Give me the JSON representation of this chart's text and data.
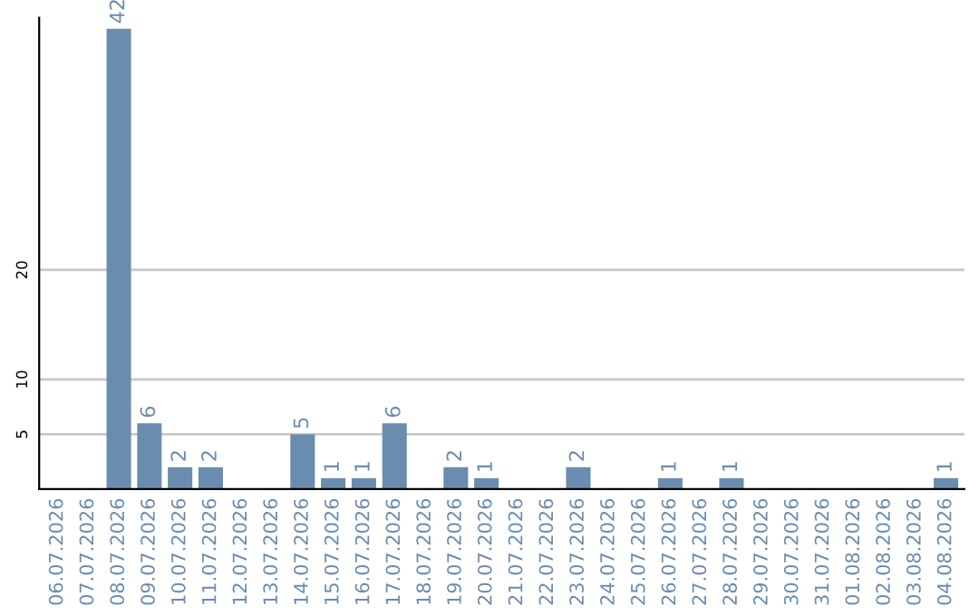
{
  "chart_data": {
    "type": "bar",
    "categories": [
      "06.07.2026",
      "07.07.2026",
      "08.07.2026",
      "09.07.2026",
      "10.07.2026",
      "11.07.2026",
      "12.07.2026",
      "13.07.2026",
      "14.07.2026",
      "15.07.2026",
      "16.07.2026",
      "17.07.2026",
      "18.07.2026",
      "19.07.2026",
      "20.07.2026",
      "21.07.2026",
      "22.07.2026",
      "23.07.2026",
      "24.07.2026",
      "25.07.2026",
      "26.07.2026",
      "27.07.2026",
      "28.07.2026",
      "29.07.2026",
      "30.07.2026",
      "31.07.2026",
      "01.08.2026",
      "02.08.2026",
      "03.08.2026",
      "04.08.2026"
    ],
    "values": [
      0,
      0,
      42,
      6,
      2,
      2,
      0,
      0,
      5,
      1,
      1,
      6,
      0,
      2,
      1,
      0,
      0,
      2,
      0,
      0,
      1,
      0,
      1,
      0,
      0,
      0,
      0,
      0,
      0,
      1
    ],
    "value_labels": [
      null,
      null,
      "42",
      "6",
      "2",
      "2",
      null,
      null,
      "5",
      "1",
      "1",
      "6",
      null,
      "2",
      "1",
      null,
      null,
      "2",
      null,
      null,
      "1",
      null,
      "1",
      null,
      null,
      null,
      null,
      null,
      null,
      "1"
    ],
    "color": "#6a8caf",
    "ylim": [
      0,
      43
    ],
    "yticks": [
      5,
      10,
      20
    ],
    "grid": "y"
  }
}
